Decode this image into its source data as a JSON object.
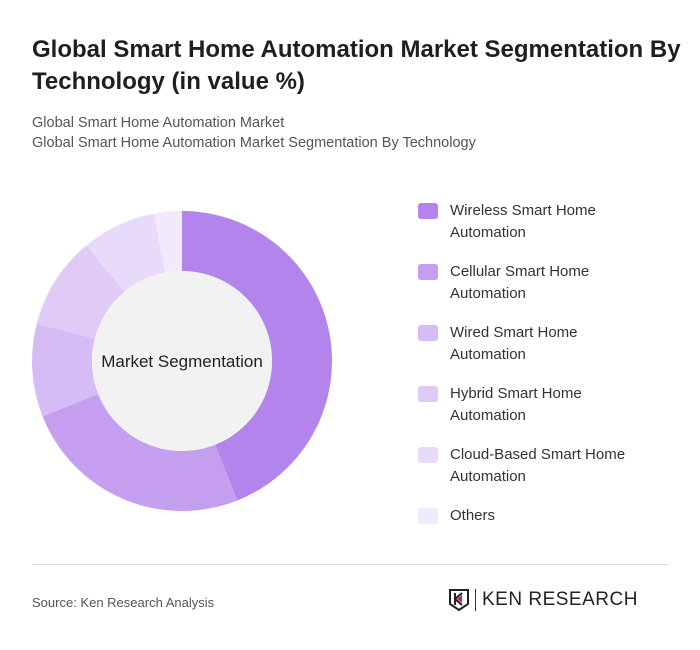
{
  "title": "Global Smart Home Automation Market Segmentation By Technology (in value %)",
  "subtitle1": "Global Smart Home Automation Market",
  "subtitle2": "Global Smart Home Automation Market Segmentation By Technology",
  "source": "Source: Ken Research Analysis",
  "logo_text": "KEN RESEARCH",
  "chart_data": {
    "type": "pie",
    "variant": "donut",
    "center_label": "Market Segmentation",
    "categories": [
      "Wireless Smart Home Automation",
      "Cellular Smart Home Automation",
      "Wired Smart Home Automation",
      "Hybrid Smart Home Automation",
      "Cloud-Based Smart Home Automation",
      "Others"
    ],
    "values": [
      44,
      25,
      10,
      10,
      8,
      3
    ],
    "colors": [
      "#b385ec",
      "#c49ff0",
      "#d6bcf5",
      "#e0cbf7",
      "#e8dbf9",
      "#f1eafc"
    ],
    "legend_position": "right"
  }
}
